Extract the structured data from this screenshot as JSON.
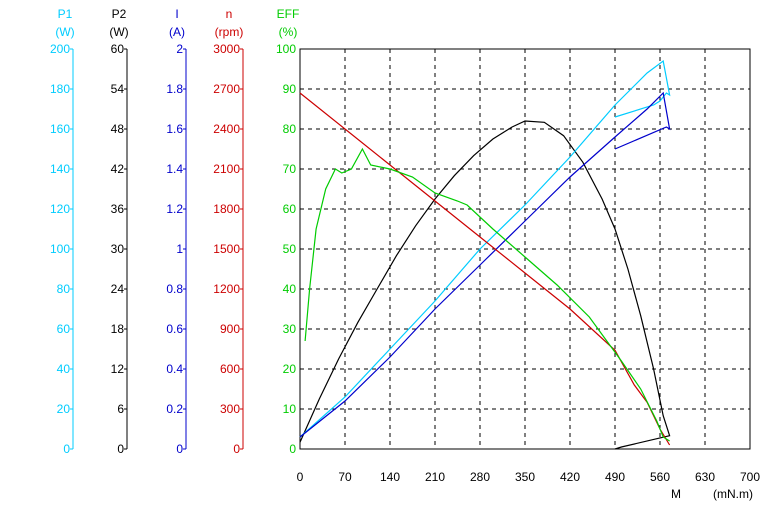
{
  "chart_data": {
    "type": "line",
    "xlabel": "M",
    "xunit": "(mN.m)",
    "xlim": [
      0,
      700
    ],
    "xticks": [
      "0",
      "70",
      "140",
      "210",
      "280",
      "350",
      "420",
      "490",
      "560",
      "630",
      "700"
    ],
    "grid": true,
    "axes": [
      {
        "id": "p1",
        "name": "P1",
        "unit": "(W)",
        "color": "#00ccff",
        "ylim": [
          0,
          200
        ],
        "ticks": [
          "0",
          "20",
          "40",
          "60",
          "80",
          "100",
          "120",
          "140",
          "160",
          "180",
          "200"
        ]
      },
      {
        "id": "p2",
        "name": "P2",
        "unit": "(W)",
        "color": "#000000",
        "ylim": [
          0,
          60
        ],
        "ticks": [
          "0",
          "6",
          "12",
          "18",
          "24",
          "30",
          "36",
          "42",
          "48",
          "54",
          "60"
        ]
      },
      {
        "id": "i",
        "name": "I",
        "unit": "(A)",
        "color": "#0000cc",
        "ylim": [
          0,
          2
        ],
        "ticks": [
          "0",
          "0.2",
          "0.4",
          "0.6",
          "0.8",
          "1",
          "1.2",
          "1.4",
          "1.6",
          "1.8",
          "2"
        ]
      },
      {
        "id": "n",
        "name": "n",
        "unit": "(rpm)",
        "color": "#cc0000",
        "ylim": [
          0,
          3000
        ],
        "ticks": [
          "0",
          "300",
          "600",
          "900",
          "1200",
          "1500",
          "1800",
          "2100",
          "2400",
          "2700",
          "3000"
        ]
      },
      {
        "id": "eff",
        "name": "EFF",
        "unit": "(%)",
        "color": "#00cc00",
        "ylim": [
          0,
          100
        ],
        "ticks": [
          "0",
          "10",
          "20",
          "30",
          "40",
          "50",
          "60",
          "70",
          "80",
          "90",
          "100"
        ]
      }
    ],
    "series": [
      {
        "name": "P2",
        "axis": "p2",
        "color": "#000000",
        "x": [
          0,
          30,
          60,
          90,
          120,
          150,
          180,
          210,
          240,
          270,
          300,
          330,
          350,
          380,
          410,
          440,
          470,
          490,
          510,
          530,
          550,
          565,
          575,
          500,
          490
        ],
        "y": [
          1,
          7.5,
          13.5,
          19,
          24,
          29,
          33.5,
          37.5,
          41,
          44,
          46.5,
          48.3,
          49.2,
          49,
          47,
          43,
          37.5,
          33,
          27,
          20,
          12,
          5,
          2,
          0.3,
          0
        ]
      },
      {
        "name": "P1",
        "axis": "p1",
        "color": "#00ccff",
        "x": [
          0,
          70,
          140,
          210,
          280,
          350,
          420,
          490,
          540,
          565,
          575,
          570,
          560,
          550,
          490
        ],
        "y": [
          6,
          26,
          50,
          74,
          100,
          122,
          146,
          172,
          188,
          194,
          177,
          178,
          174,
          172,
          166
        ]
      },
      {
        "name": "I",
        "axis": "i",
        "color": "#0000cc",
        "x": [
          0,
          70,
          140,
          210,
          280,
          350,
          420,
          490,
          540,
          565,
          575,
          570,
          490
        ],
        "y": [
          0.06,
          0.24,
          0.46,
          0.7,
          0.92,
          1.14,
          1.36,
          1.56,
          1.7,
          1.78,
          1.6,
          1.61,
          1.5
        ]
      },
      {
        "name": "n",
        "axis": "n",
        "color": "#cc0000",
        "x": [
          0,
          70,
          140,
          210,
          280,
          350,
          420,
          490,
          520,
          540,
          560,
          575
        ],
        "y": [
          2670,
          2400,
          2130,
          1860,
          1590,
          1320,
          1050,
          740,
          480,
          350,
          150,
          30
        ]
      },
      {
        "name": "EFF",
        "axis": "eff",
        "color": "#00cc00",
        "x": [
          8,
          15,
          25,
          40,
          55,
          65,
          80,
          97,
          110,
          140,
          175,
          210,
          245,
          260,
          300,
          350,
          400,
          450,
          500,
          530,
          555,
          565,
          570,
          575
        ],
        "y": [
          27,
          40,
          55,
          65,
          70,
          69,
          70,
          75,
          71,
          70,
          68,
          64,
          62,
          61,
          55,
          48,
          41,
          33,
          22,
          15,
          7,
          3,
          2.5,
          2
        ]
      }
    ]
  }
}
